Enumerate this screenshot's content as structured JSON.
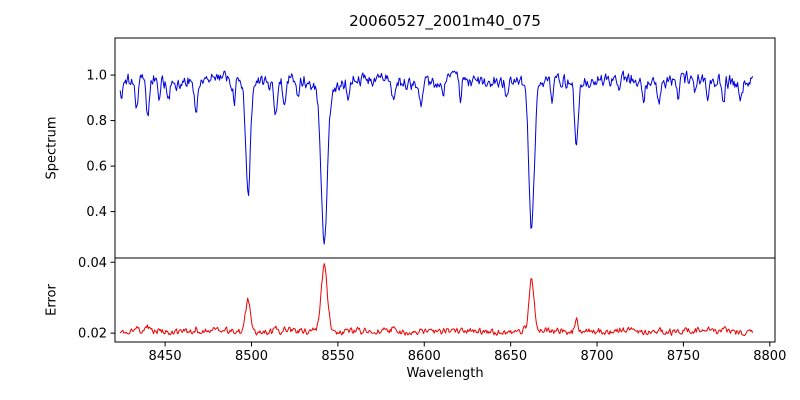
{
  "chart_data": {
    "type": "line",
    "title": "20060527_2001m40_075",
    "xlabel": "Wavelength",
    "xlim": [
      8421,
      8803
    ],
    "x_range_data": [
      8424,
      8790
    ],
    "xticks": [
      8450,
      8500,
      8550,
      8600,
      8650,
      8700,
      8750,
      8800
    ],
    "xtick_labels": [
      "8450",
      "8500",
      "8550",
      "8600",
      "8650",
      "8700",
      "8750",
      "8800"
    ],
    "panels": [
      {
        "name": "spectrum",
        "ylabel": "Spectrum",
        "color": "#0000dd",
        "ylim": [
          0.196,
          1.163
        ],
        "yticks": [
          0.4,
          0.6,
          0.8,
          1.0
        ],
        "ytick_labels": [
          "0.4",
          "0.6",
          "0.8",
          "1.0"
        ],
        "model": {
          "seed": 20060527,
          "n_points": 720,
          "base": 0.975,
          "sign": -1,
          "noise_amplitude": 0.034,
          "wiggle": 0.01,
          "lines": [
            {
              "center": 8424.5,
              "amp": 0.08,
              "sigma": 0.8
            },
            {
              "center": 8433.5,
              "amp": 0.12,
              "sigma": 0.8
            },
            {
              "center": 8440.0,
              "amp": 0.17,
              "sigma": 0.9
            },
            {
              "center": 8446.5,
              "amp": 0.1,
              "sigma": 0.7
            },
            {
              "center": 8452.0,
              "amp": 0.07,
              "sigma": 0.7
            },
            {
              "center": 8468.0,
              "amp": 0.14,
              "sigma": 0.9
            },
            {
              "center": 8490.0,
              "amp": 0.1,
              "sigma": 0.7
            },
            {
              "center": 8498.0,
              "amp": 0.5,
              "sigma": 1.4
            },
            {
              "center": 8514.0,
              "amp": 0.14,
              "sigma": 0.8
            },
            {
              "center": 8519.0,
              "amp": 0.13,
              "sigma": 0.8
            },
            {
              "center": 8527.0,
              "amp": 0.08,
              "sigma": 0.7
            },
            {
              "center": 8542.1,
              "amp": 0.66,
              "sigma": 1.7
            },
            {
              "center": 8542.1,
              "amp": 0.06,
              "sigma": 5.0
            },
            {
              "center": 8556.0,
              "amp": 0.07,
              "sigma": 0.7
            },
            {
              "center": 8582.0,
              "amp": 0.09,
              "sigma": 0.7
            },
            {
              "center": 8598.0,
              "amp": 0.1,
              "sigma": 0.8
            },
            {
              "center": 8611.0,
              "amp": 0.07,
              "sigma": 0.7
            },
            {
              "center": 8621.0,
              "amp": 0.09,
              "sigma": 0.7
            },
            {
              "center": 8648.0,
              "amp": 0.07,
              "sigma": 0.7
            },
            {
              "center": 8662.1,
              "amp": 0.62,
              "sigma": 1.5
            },
            {
              "center": 8662.1,
              "amp": 0.05,
              "sigma": 4.0
            },
            {
              "center": 8674.0,
              "amp": 0.09,
              "sigma": 0.7
            },
            {
              "center": 8688.0,
              "amp": 0.27,
              "sigma": 1.0
            },
            {
              "center": 8713.0,
              "amp": 0.07,
              "sigma": 0.7
            },
            {
              "center": 8727.0,
              "amp": 0.06,
              "sigma": 0.7
            },
            {
              "center": 8736.0,
              "amp": 0.11,
              "sigma": 0.8
            },
            {
              "center": 8747.0,
              "amp": 0.09,
              "sigma": 0.7
            },
            {
              "center": 8757.0,
              "amp": 0.07,
              "sigma": 0.7
            },
            {
              "center": 8764.0,
              "amp": 0.08,
              "sigma": 0.7
            },
            {
              "center": 8773.0,
              "amp": 0.11,
              "sigma": 0.8
            },
            {
              "center": 8783.0,
              "amp": 0.07,
              "sigma": 0.7
            }
          ]
        }
      },
      {
        "name": "error",
        "ylabel": "Error",
        "color": "#ee0000",
        "ylim": [
          0.0175,
          0.0412
        ],
        "yticks": [
          0.02,
          0.04
        ],
        "ytick_labels": [
          "0.02",
          "0.04"
        ],
        "model": {
          "seed": 2001,
          "n_points": 720,
          "base": 0.0205,
          "sign": 1,
          "noise_amplitude": 0.0011,
          "wiggle": 0.0002,
          "lines": [
            {
              "center": 8433.5,
              "amp": 0.0012,
              "sigma": 0.9
            },
            {
              "center": 8440.0,
              "amp": 0.001,
              "sigma": 0.8
            },
            {
              "center": 8468.0,
              "amp": 0.0009,
              "sigma": 0.8
            },
            {
              "center": 8498.0,
              "amp": 0.009,
              "sigma": 1.5
            },
            {
              "center": 8514.0,
              "amp": 0.0012,
              "sigma": 0.8
            },
            {
              "center": 8542.1,
              "amp": 0.0185,
              "sigma": 1.8
            },
            {
              "center": 8582.0,
              "amp": 0.0009,
              "sigma": 0.7
            },
            {
              "center": 8598.0,
              "amp": 0.0008,
              "sigma": 0.7
            },
            {
              "center": 8662.1,
              "amp": 0.0145,
              "sigma": 1.5
            },
            {
              "center": 8688.0,
              "amp": 0.0035,
              "sigma": 1.0
            },
            {
              "center": 8736.0,
              "amp": 0.0008,
              "sigma": 0.7
            },
            {
              "center": 8764.0,
              "amp": 0.0008,
              "sigma": 0.7
            },
            {
              "center": 8773.0,
              "amp": 0.0011,
              "sigma": 0.8
            }
          ]
        }
      }
    ]
  }
}
